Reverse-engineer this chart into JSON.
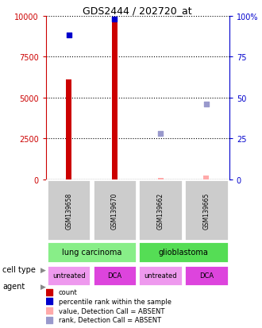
{
  "title": "GDS2444 / 202720_at",
  "samples": [
    "GSM139658",
    "GSM139670",
    "GSM139662",
    "GSM139665"
  ],
  "bar_values": [
    6100,
    9700,
    0,
    0
  ],
  "bar_color": "#cc0000",
  "absent_bar_values": [
    0,
    0,
    100,
    250
  ],
  "absent_bar_color": "#ffaaaa",
  "percentile_values": [
    88,
    98,
    null,
    null
  ],
  "percentile_color": "#0000cc",
  "absent_rank_values": [
    null,
    null,
    28,
    46
  ],
  "absent_rank_color": "#9999cc",
  "ylim_left": [
    0,
    10000
  ],
  "ylim_right": [
    0,
    100
  ],
  "yticks_left": [
    0,
    2500,
    5000,
    7500,
    10000
  ],
  "yticks_right": [
    0,
    25,
    50,
    75,
    100
  ],
  "ytick_labels_left": [
    "0",
    "2500",
    "5000",
    "7500",
    "10000"
  ],
  "ytick_labels_right": [
    "0",
    "25",
    "50",
    "75",
    "100%"
  ],
  "left_color": "#cc0000",
  "right_color": "#0000cc",
  "cell_types": [
    [
      "lung carcinoma",
      2
    ],
    [
      "glioblastoma",
      2
    ]
  ],
  "cell_type_colors": [
    "#88ee88",
    "#55dd55"
  ],
  "agents": [
    "untreated",
    "DCA",
    "untreated",
    "DCA"
  ],
  "agent_colors": [
    "#ee99ee",
    "#dd44dd",
    "#ee99ee",
    "#dd44dd"
  ],
  "sample_label_bg": "#cccccc",
  "background_color": "#ffffff",
  "bar_width": 0.12,
  "sq_size": 25,
  "legend_items": [
    {
      "label": "count",
      "color": "#cc0000"
    },
    {
      "label": "percentile rank within the sample",
      "color": "#0000cc"
    },
    {
      "label": "value, Detection Call = ABSENT",
      "color": "#ffaaaa"
    },
    {
      "label": "rank, Detection Call = ABSENT",
      "color": "#9999cc"
    }
  ]
}
